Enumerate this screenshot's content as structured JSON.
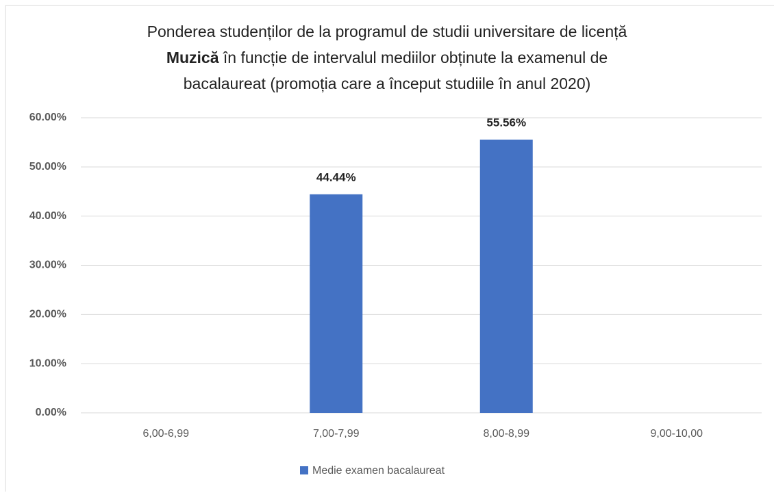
{
  "chart_data": {
    "type": "bar",
    "title": [
      "Ponderea studenților de la programul de studii universitare de licență",
      "Muzică",
      " în funcție de intervalul mediilor obținute la examenul de",
      "bacalaureat (promoția care a început studiile în anul 2020)"
    ],
    "categories": [
      "6,00-6,99",
      "7,00-7,99",
      "8,00-8,99",
      "9,00-10,00"
    ],
    "series": [
      {
        "name": "Medie examen bacalaureat",
        "color": "#4472c4",
        "values": [
          0,
          44.44,
          55.56,
          0
        ],
        "value_labels": [
          null,
          "44.44%",
          "55.56%",
          null
        ]
      }
    ],
    "ylim": [
      0,
      60
    ],
    "yticks": [
      {
        "value": 0,
        "label": "0.00%"
      },
      {
        "value": 10,
        "label": "10.00%"
      },
      {
        "value": 20,
        "label": "20.00%"
      },
      {
        "value": 30,
        "label": "30.00%"
      },
      {
        "value": 40,
        "label": "40.00%"
      },
      {
        "value": 50,
        "label": "50.00%"
      },
      {
        "value": 60,
        "label": "60.00%"
      }
    ],
    "grid": true,
    "legend": "bottom"
  }
}
